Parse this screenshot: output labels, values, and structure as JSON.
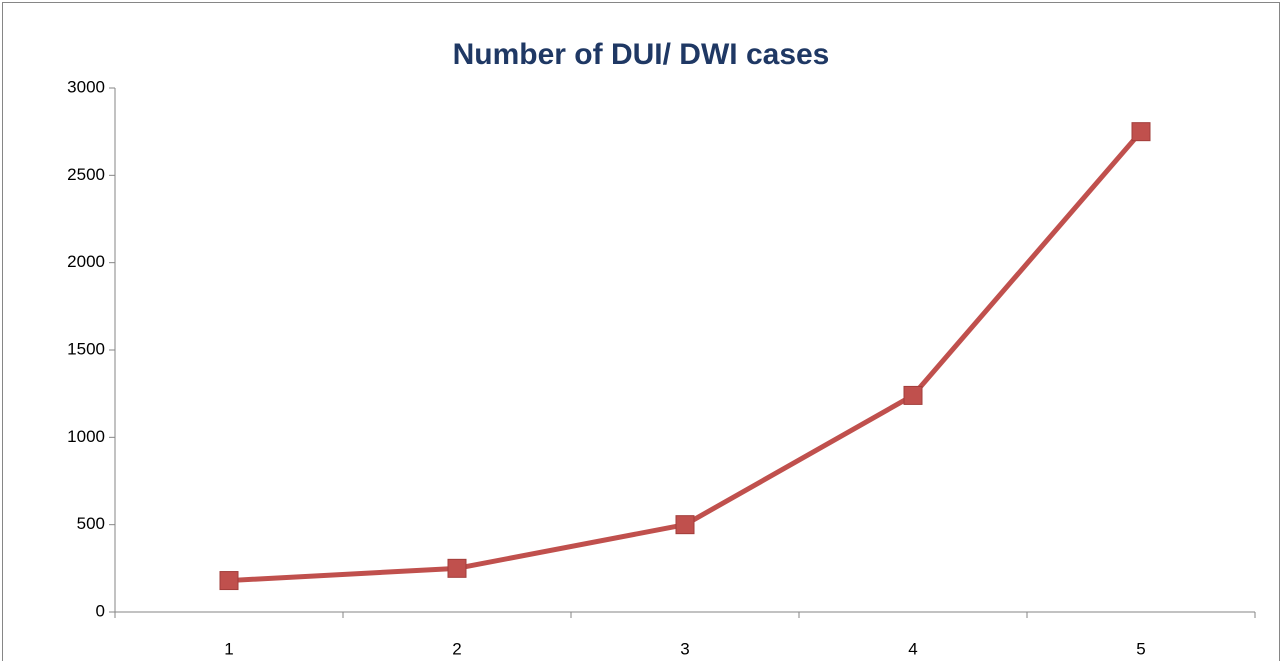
{
  "chart_data": {
    "type": "line",
    "title": "Number of DUI/ DWI cases",
    "categories": [
      "1",
      "2",
      "3",
      "4",
      "5"
    ],
    "series": [
      {
        "name": "Number of DUI/ DWI cases",
        "color": "#c0504d",
        "values": [
          180,
          250,
          500,
          1240,
          2750
        ]
      }
    ],
    "ylim": [
      0,
      3000
    ],
    "yticks": [
      0,
      500,
      1000,
      1500,
      2000,
      2500,
      3000
    ],
    "grid": false,
    "legend": false
  }
}
